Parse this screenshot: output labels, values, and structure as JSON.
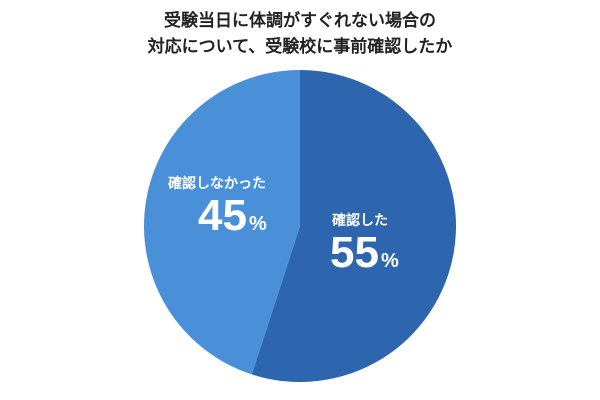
{
  "title": {
    "line1": "受験当日に体調がすぐれない場合の",
    "line2": "対応について、受験校に事前確認したか"
  },
  "colors": {
    "confirmed": "#2d65ae",
    "not_confirmed": "#4a90d9"
  },
  "labels": {
    "confirmed": {
      "name": "確認した",
      "value": "55",
      "unit": "%"
    },
    "not_confirmed": {
      "name": "確認しなかった",
      "value": "45",
      "unit": "%"
    }
  },
  "chart_data": {
    "type": "pie",
    "title": "受験当日に体調がすぐれない場合の対応について、受験校に事前確認したか",
    "categories": [
      "確認した",
      "確認しなかった"
    ],
    "values": [
      55,
      45
    ],
    "unit": "%",
    "colors": [
      "#2d65ae",
      "#4a90d9"
    ],
    "start_angle": "12 o'clock, clockwise",
    "legend": "none (labels inside slices)"
  }
}
